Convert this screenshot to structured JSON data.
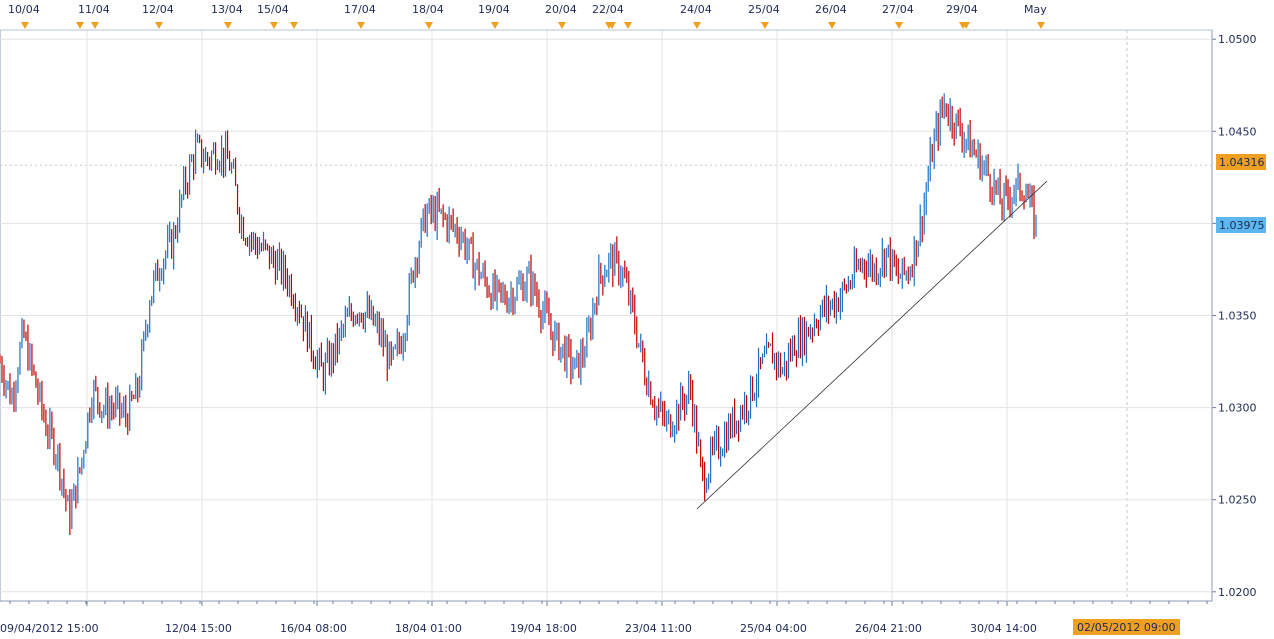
{
  "colors": {
    "up": "#1f6fbf",
    "down": "#c00000",
    "grid": "#e3e3e3",
    "axis": "#6b7f9c",
    "event_marker": "#f0a020",
    "last_price_tag": "#5bb7ee",
    "ref_price_tag": "#f0a020",
    "date_tag": "#f0a020"
  },
  "chart_data": {
    "type": "candlestick",
    "ylim": [
      1.0195,
      1.0505
    ],
    "y_ticks": [
      "1.0500",
      "1.0450",
      "1.0400",
      "1.0350",
      "1.0300",
      "1.0250",
      "1.0200"
    ],
    "x_ticks": [
      "09/04/2012 15:00",
      "12/04 15:00",
      "16/04 08:00",
      "18/04 01:00",
      "19/04 18:00",
      "23/04 11:00",
      "25/04 04:00",
      "26/04 21:00",
      "30/04 14:00"
    ],
    "event_dates": [
      "10/04",
      "11/04",
      "12/04",
      "13/04",
      "15/04",
      "17/04",
      "18/04",
      "19/04",
      "20/04",
      "22/04",
      "24/04",
      "25/04",
      "26/04",
      "27/04",
      "29/04",
      "May"
    ],
    "reference_price": "1.04316",
    "last_price": "1.03975",
    "cursor_date": "02/05/2012 09:00",
    "trendline": {
      "from": {
        "x": "23/04 ~17:00",
        "y": 1.0245
      },
      "to": {
        "x": "01/05 ~12:00",
        "y": 1.0423
      }
    },
    "price_path": [
      1.0325,
      1.0305,
      1.034,
      1.0315,
      1.029,
      1.0275,
      1.024,
      1.0268,
      1.031,
      1.03,
      1.03,
      1.0295,
      1.031,
      1.036,
      1.038,
      1.039,
      1.042,
      1.044,
      1.0435,
      1.044,
      1.0432,
      1.04,
      1.039,
      1.0385,
      1.0378,
      1.037,
      1.0355,
      1.0335,
      1.0318,
      1.033,
      1.0345,
      1.0355,
      1.035,
      1.034,
      1.0322,
      1.034,
      1.038,
      1.0405,
      1.0405,
      1.04,
      1.0395,
      1.038,
      1.037,
      1.036,
      1.036,
      1.0365,
      1.037,
      1.0355,
      1.034,
      1.033,
      1.032,
      1.0335,
      1.037,
      1.038,
      1.0375,
      1.035,
      1.032,
      1.03,
      1.029,
      1.03,
      1.031,
      1.026,
      1.0275,
      1.0285,
      1.0295,
      1.0305,
      1.032,
      1.033,
      1.032,
      1.0335,
      1.034,
      1.035,
      1.0355,
      1.036,
      1.037,
      1.038,
      1.0375,
      1.0385,
      1.037,
      1.0375,
      1.04,
      1.044,
      1.0465,
      1.0455,
      1.0445,
      1.0435,
      1.0425,
      1.041,
      1.0418,
      1.042,
      1.0398
    ]
  }
}
